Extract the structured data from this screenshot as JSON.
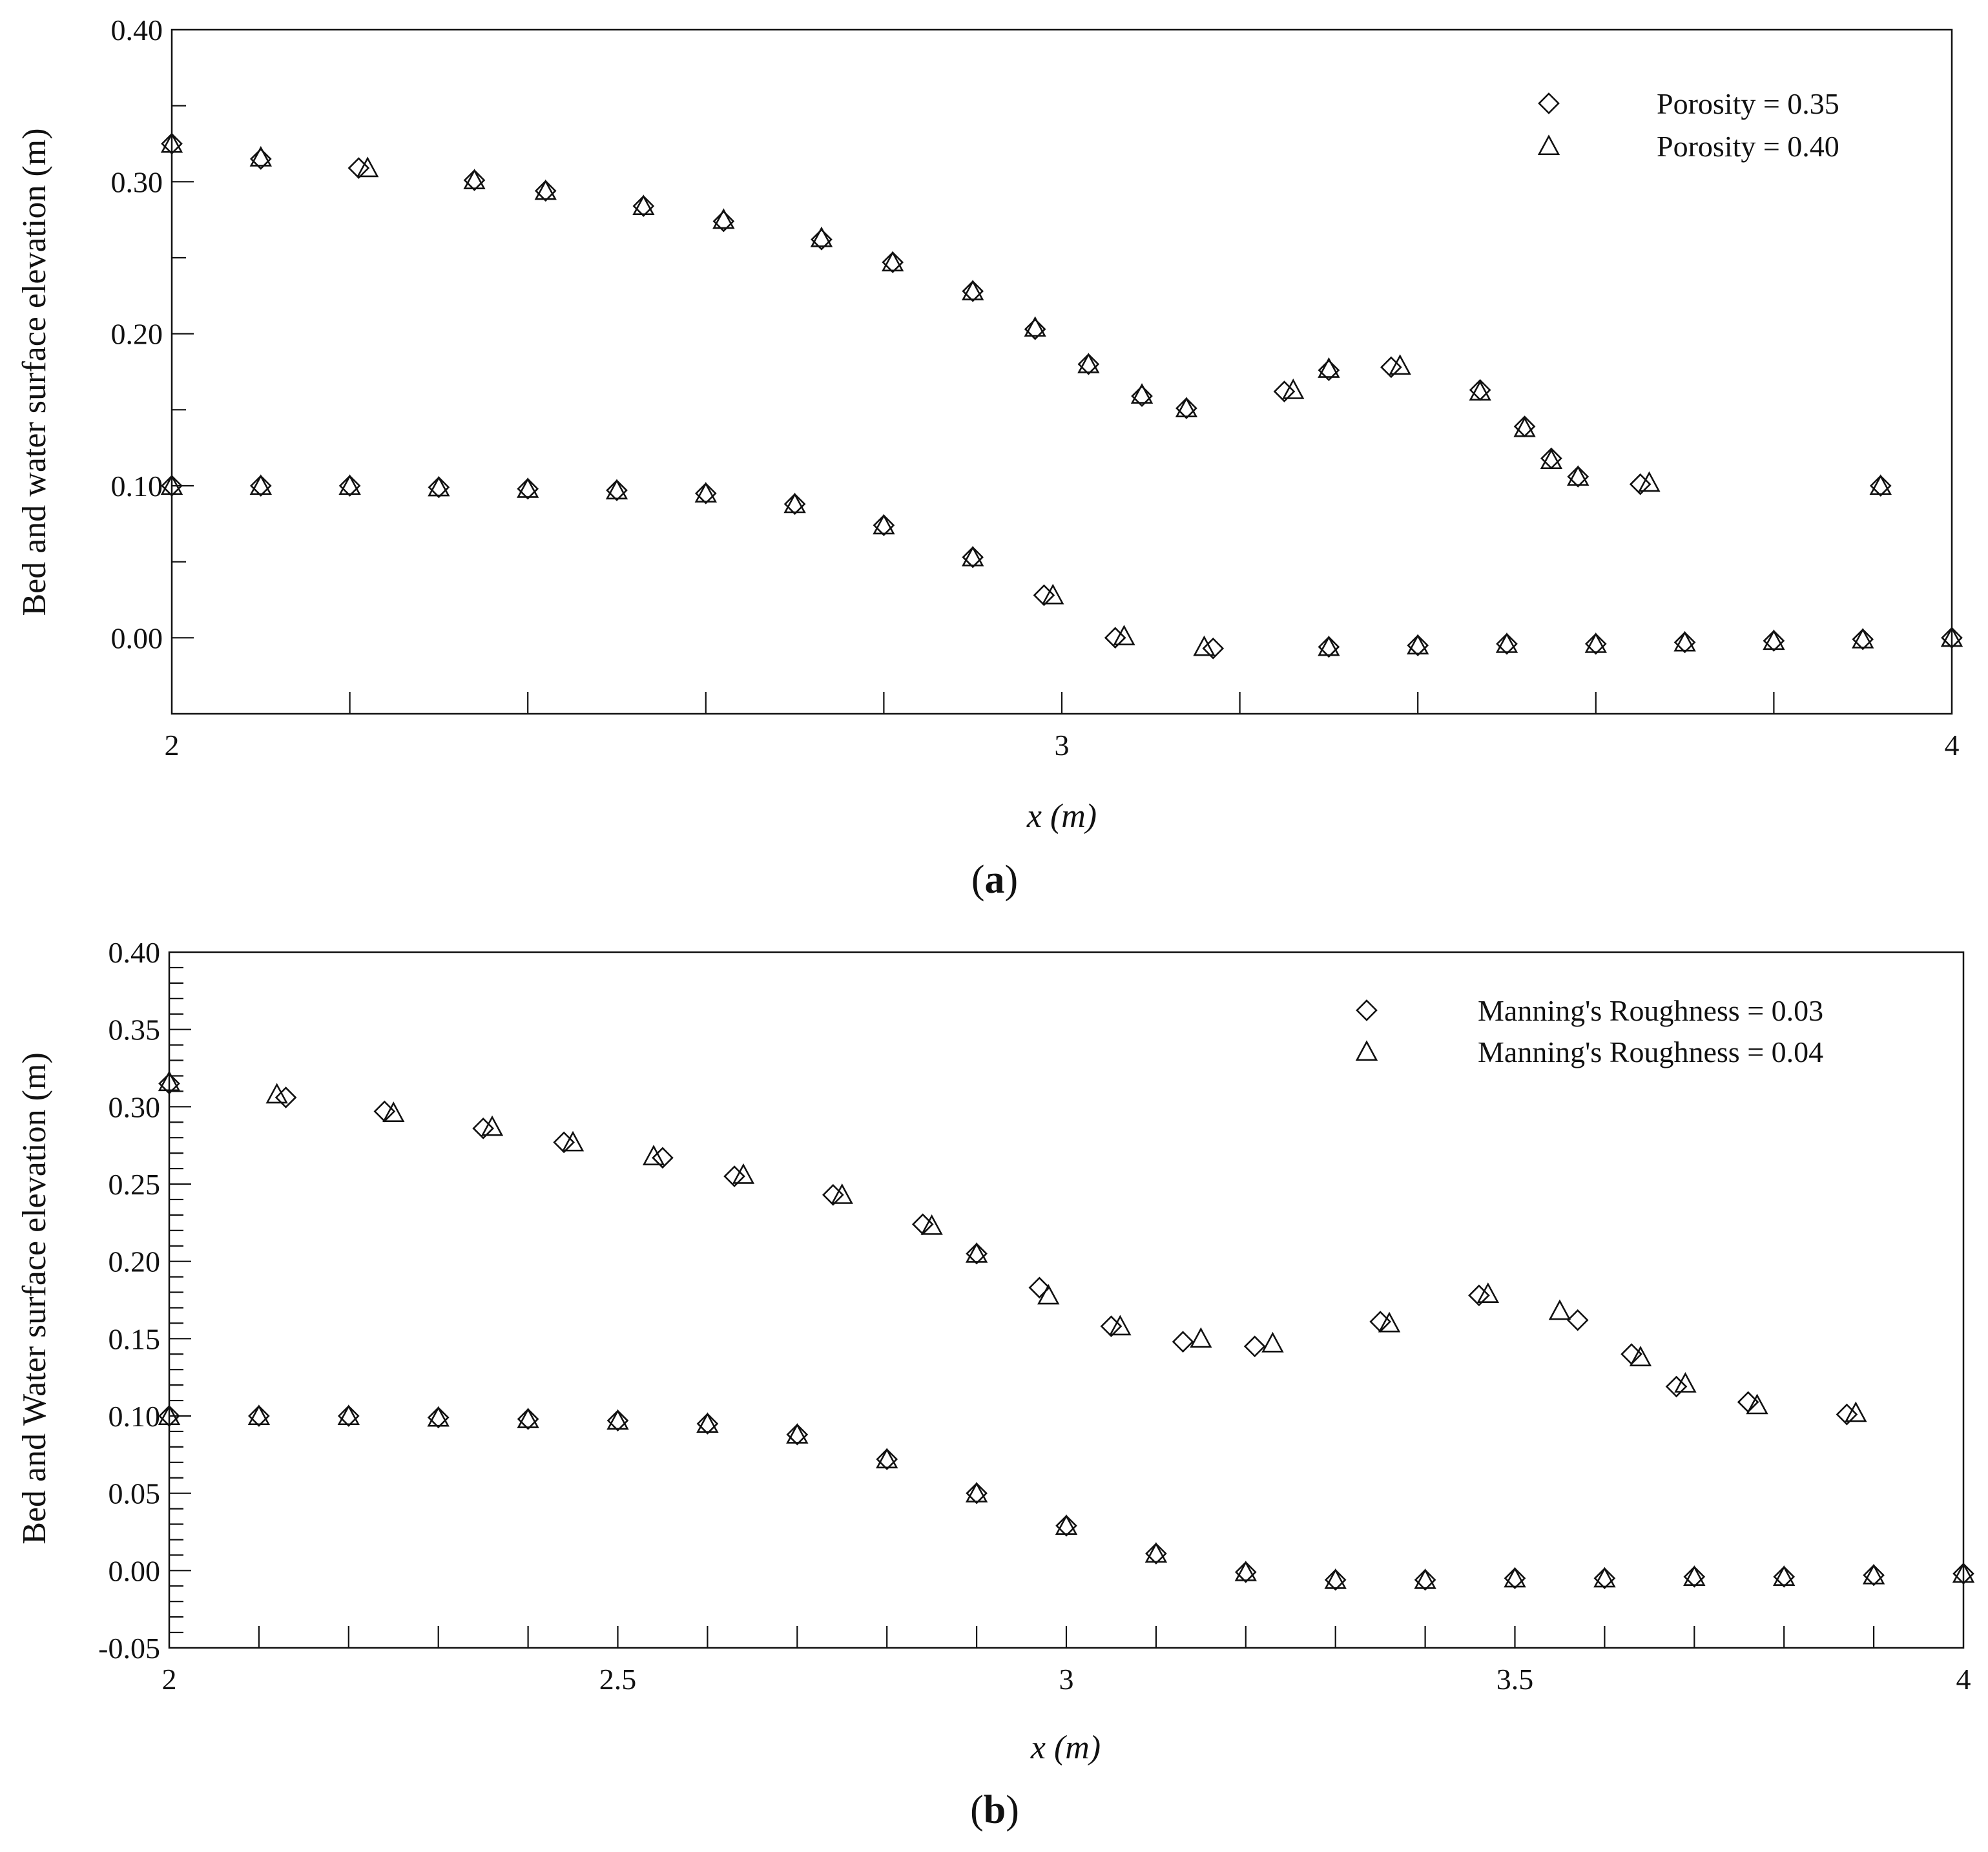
{
  "chart_data": [
    {
      "type": "scatter",
      "panel_label": {
        "open": "(",
        "letter": "a",
        "close": ")"
      },
      "xlabel": "x (m)",
      "ylabel": "Bed and water surface elevation (m)",
      "xlim": [
        2,
        4
      ],
      "ylim": [
        -0.05,
        0.4
      ],
      "x_ticks": [
        2,
        3,
        4
      ],
      "x_tick_labels": [
        "2",
        "3",
        "4"
      ],
      "x_minor_step": 0.2,
      "y_ticks": [
        0.0,
        0.1,
        0.2,
        0.3,
        0.4
      ],
      "y_tick_labels": [
        "0.00",
        "0.10",
        "0.20",
        "0.30",
        "0.40"
      ],
      "y_minor_step": 0.05,
      "legend_position": "top-right",
      "series": [
        {
          "name": "Porosity = 0.35",
          "marker": "diamond",
          "points": [
            [
              2.0,
              0.325
            ],
            [
              2.1,
              0.315
            ],
            [
              2.21,
              0.309
            ],
            [
              2.34,
              0.301
            ],
            [
              2.42,
              0.294
            ],
            [
              2.53,
              0.284
            ],
            [
              2.62,
              0.274
            ],
            [
              2.73,
              0.262
            ],
            [
              2.81,
              0.247
            ],
            [
              2.9,
              0.228
            ],
            [
              2.97,
              0.203
            ],
            [
              3.03,
              0.18
            ],
            [
              3.09,
              0.159
            ],
            [
              3.14,
              0.151
            ],
            [
              3.25,
              0.162
            ],
            [
              3.3,
              0.176
            ],
            [
              3.37,
              0.178
            ],
            [
              3.47,
              0.163
            ],
            [
              3.52,
              0.139
            ],
            [
              3.55,
              0.118
            ],
            [
              3.58,
              0.106
            ],
            [
              3.65,
              0.101
            ],
            [
              3.92,
              0.1
            ],
            [
              2.0,
              0.1
            ],
            [
              2.1,
              0.1
            ],
            [
              2.2,
              0.1
            ],
            [
              2.3,
              0.099
            ],
            [
              2.4,
              0.098
            ],
            [
              2.5,
              0.097
            ],
            [
              2.6,
              0.095
            ],
            [
              2.7,
              0.088
            ],
            [
              2.8,
              0.074
            ],
            [
              2.9,
              0.053
            ],
            [
              2.98,
              0.028
            ],
            [
              3.06,
              0.0
            ],
            [
              3.17,
              -0.007
            ],
            [
              3.3,
              -0.006
            ],
            [
              3.4,
              -0.005
            ],
            [
              3.5,
              -0.004
            ],
            [
              3.6,
              -0.004
            ],
            [
              3.7,
              -0.003
            ],
            [
              3.8,
              -0.002
            ],
            [
              3.9,
              -0.001
            ],
            [
              4.0,
              0.0
            ]
          ]
        },
        {
          "name": "Porosity = 0.40",
          "marker": "triangle",
          "points": [
            [
              2.0,
              0.325
            ],
            [
              2.1,
              0.316
            ],
            [
              2.22,
              0.309
            ],
            [
              2.34,
              0.301
            ],
            [
              2.42,
              0.294
            ],
            [
              2.53,
              0.284
            ],
            [
              2.62,
              0.275
            ],
            [
              2.73,
              0.263
            ],
            [
              2.81,
              0.247
            ],
            [
              2.9,
              0.228
            ],
            [
              2.97,
              0.204
            ],
            [
              3.03,
              0.18
            ],
            [
              3.09,
              0.16
            ],
            [
              3.14,
              0.151
            ],
            [
              3.26,
              0.163
            ],
            [
              3.3,
              0.177
            ],
            [
              3.38,
              0.179
            ],
            [
              3.47,
              0.162
            ],
            [
              3.52,
              0.138
            ],
            [
              3.55,
              0.117
            ],
            [
              3.58,
              0.106
            ],
            [
              3.66,
              0.102
            ],
            [
              3.92,
              0.1
            ],
            [
              2.0,
              0.1
            ],
            [
              2.1,
              0.1
            ],
            [
              2.2,
              0.1
            ],
            [
              2.3,
              0.099
            ],
            [
              2.4,
              0.098
            ],
            [
              2.5,
              0.097
            ],
            [
              2.6,
              0.095
            ],
            [
              2.7,
              0.088
            ],
            [
              2.8,
              0.074
            ],
            [
              2.9,
              0.053
            ],
            [
              2.99,
              0.028
            ],
            [
              3.07,
              0.001
            ],
            [
              3.16,
              -0.006
            ],
            [
              3.3,
              -0.006
            ],
            [
              3.4,
              -0.005
            ],
            [
              3.5,
              -0.004
            ],
            [
              3.6,
              -0.004
            ],
            [
              3.7,
              -0.003
            ],
            [
              3.8,
              -0.002
            ],
            [
              3.9,
              -0.001
            ],
            [
              4.0,
              0.0
            ]
          ]
        }
      ]
    },
    {
      "type": "scatter",
      "panel_label": {
        "open": "(",
        "letter": "b",
        "close": ")"
      },
      "xlabel": "x (m)",
      "ylabel": "Bed and Water surface elevation (m)",
      "xlim": [
        2,
        4
      ],
      "ylim": [
        -0.05,
        0.4
      ],
      "x_ticks": [
        2,
        2.5,
        3,
        3.5,
        4
      ],
      "x_tick_labels": [
        "2",
        "2.5",
        "3",
        "3.5",
        "4"
      ],
      "x_minor_step": 0.1,
      "y_ticks": [
        -0.05,
        0.0,
        0.05,
        0.1,
        0.15,
        0.2,
        0.25,
        0.3,
        0.35,
        0.4
      ],
      "y_tick_labels": [
        "-0.05",
        "0.00",
        "0.05",
        "0.10",
        "0.15",
        "0.20",
        "0.25",
        "0.30",
        "0.35",
        "0.40"
      ],
      "y_minor_step": 0.01,
      "legend_position": "top-right",
      "series": [
        {
          "name": "Manning's Roughness = 0.03",
          "marker": "diamond",
          "points": [
            [
              2.0,
              0.315
            ],
            [
              2.13,
              0.306
            ],
            [
              2.24,
              0.297
            ],
            [
              2.35,
              0.286
            ],
            [
              2.44,
              0.277
            ],
            [
              2.55,
              0.267
            ],
            [
              2.63,
              0.255
            ],
            [
              2.74,
              0.243
            ],
            [
              2.84,
              0.224
            ],
            [
              2.9,
              0.205
            ],
            [
              2.97,
              0.183
            ],
            [
              3.05,
              0.158
            ],
            [
              3.13,
              0.148
            ],
            [
              3.21,
              0.145
            ],
            [
              3.35,
              0.161
            ],
            [
              3.46,
              0.178
            ],
            [
              3.57,
              0.162
            ],
            [
              3.63,
              0.14
            ],
            [
              3.68,
              0.119
            ],
            [
              3.76,
              0.109
            ],
            [
              3.87,
              0.101
            ],
            [
              2.0,
              0.1
            ],
            [
              2.1,
              0.1
            ],
            [
              2.2,
              0.1
            ],
            [
              2.3,
              0.099
            ],
            [
              2.4,
              0.098
            ],
            [
              2.5,
              0.097
            ],
            [
              2.6,
              0.095
            ],
            [
              2.7,
              0.088
            ],
            [
              2.8,
              0.072
            ],
            [
              2.9,
              0.05
            ],
            [
              3.0,
              0.029
            ],
            [
              3.1,
              0.011
            ],
            [
              3.2,
              -0.001
            ],
            [
              3.3,
              -0.006
            ],
            [
              3.4,
              -0.006
            ],
            [
              3.5,
              -0.005
            ],
            [
              3.6,
              -0.005
            ],
            [
              3.7,
              -0.004
            ],
            [
              3.8,
              -0.004
            ],
            [
              3.9,
              -0.003
            ],
            [
              4.0,
              -0.002
            ]
          ]
        },
        {
          "name": "Manning's Roughness = 0.04",
          "marker": "triangle",
          "points": [
            [
              2.0,
              0.316
            ],
            [
              2.12,
              0.308
            ],
            [
              2.25,
              0.296
            ],
            [
              2.36,
              0.287
            ],
            [
              2.45,
              0.277
            ],
            [
              2.54,
              0.268
            ],
            [
              2.64,
              0.256
            ],
            [
              2.75,
              0.243
            ],
            [
              2.85,
              0.223
            ],
            [
              2.9,
              0.205
            ],
            [
              2.98,
              0.178
            ],
            [
              3.06,
              0.158
            ],
            [
              3.15,
              0.15
            ],
            [
              3.23,
              0.147
            ],
            [
              3.36,
              0.16
            ],
            [
              3.47,
              0.179
            ],
            [
              3.55,
              0.168
            ],
            [
              3.64,
              0.138
            ],
            [
              3.69,
              0.121
            ],
            [
              3.77,
              0.107
            ],
            [
              3.88,
              0.102
            ],
            [
              2.0,
              0.1
            ],
            [
              2.1,
              0.1
            ],
            [
              2.2,
              0.1
            ],
            [
              2.3,
              0.099
            ],
            [
              2.4,
              0.098
            ],
            [
              2.5,
              0.097
            ],
            [
              2.6,
              0.095
            ],
            [
              2.7,
              0.088
            ],
            [
              2.8,
              0.072
            ],
            [
              2.9,
              0.05
            ],
            [
              3.0,
              0.029
            ],
            [
              3.1,
              0.011
            ],
            [
              3.2,
              -0.001
            ],
            [
              3.3,
              -0.006
            ],
            [
              3.4,
              -0.006
            ],
            [
              3.5,
              -0.005
            ],
            [
              3.6,
              -0.005
            ],
            [
              3.7,
              -0.004
            ],
            [
              3.8,
              -0.004
            ],
            [
              3.9,
              -0.003
            ],
            [
              4.0,
              -0.002
            ]
          ]
        }
      ]
    }
  ]
}
